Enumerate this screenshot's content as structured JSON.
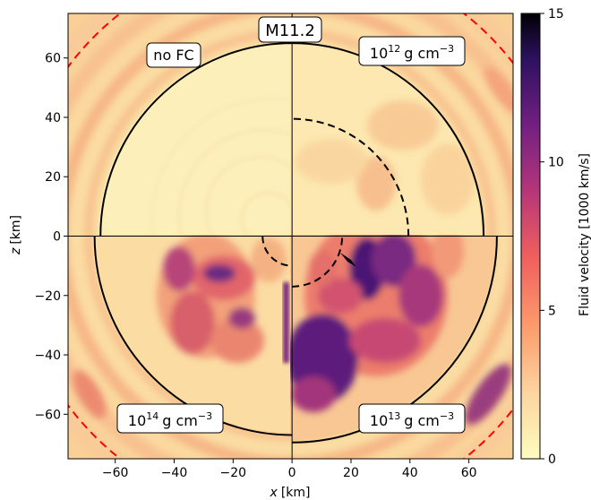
{
  "chart_data": {
    "type": "heatmap",
    "title": "M11.2",
    "xlabel_var": "x",
    "xlabel_unit": "[km]",
    "ylabel_var": "z",
    "ylabel_unit": "[km]",
    "xlim": [
      -76,
      75
    ],
    "ylim": [
      -75,
      75
    ],
    "x_ticks": [
      -60,
      -40,
      -20,
      0,
      20,
      40,
      60
    ],
    "y_ticks": [
      -60,
      -40,
      -20,
      0,
      20,
      40,
      60
    ],
    "x_tick_labels": [
      "−60",
      "−40",
      "−20",
      "0",
      "20",
      "40",
      "60"
    ],
    "y_tick_labels": [
      "−60",
      "−40",
      "−20",
      "0",
      "20",
      "40",
      "60"
    ],
    "colorbar": {
      "label": "Fluid velocity [1000 km/s]",
      "range": [
        0,
        15
      ],
      "ticks": [
        0,
        5,
        10,
        15
      ],
      "tick_labels": [
        "0",
        "5",
        "10",
        "15"
      ],
      "colormap": "magma_r"
    },
    "quadrants": [
      {
        "position": "top-left",
        "label": "no FC",
        "black_solid_radius_km": 65,
        "black_dashed_radius_km": null
      },
      {
        "position": "top-right",
        "base": "10",
        "exponent": "12",
        "unit": "g cm",
        "unit_exp": "−3",
        "black_solid_radius_km": 65,
        "black_dashed_radius_km": 39.5
      },
      {
        "position": "bottom-left",
        "base": "10",
        "exponent": "14",
        "unit": "g cm",
        "unit_exp": "−3",
        "black_solid_radius_km": 67,
        "black_dashed_radius_km": 10
      },
      {
        "position": "bottom-right",
        "base": "10",
        "exponent": "13",
        "unit": "g cm",
        "unit_exp": "−3",
        "black_solid_radius_km": 69.5,
        "black_dashed_radius_km": 17
      }
    ],
    "red_dashed_radius_km": 95,
    "colors": {
      "background_low": "#fcf1b9",
      "mid": "#f8c68f",
      "high": "#e85a62",
      "vhigh": "#5c1c7a",
      "max": "#000004",
      "red_dashed": "#ff0000",
      "black_line": "#000000"
    }
  }
}
